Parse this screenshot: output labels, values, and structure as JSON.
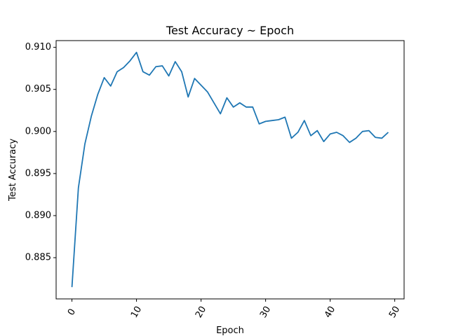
{
  "chart_data": {
    "type": "line",
    "title": "Test Accuracy ~ Epoch",
    "xlabel": "Epoch",
    "ylabel": "Test Accuracy",
    "xlim": [
      -2.45,
      51.45
    ],
    "ylim": [
      0.8801,
      0.9108
    ],
    "x_ticks": [
      "0",
      "10",
      "20",
      "30",
      "40",
      "50"
    ],
    "y_ticks": [
      "0.885",
      "0.890",
      "0.895",
      "0.900",
      "0.905",
      "0.910"
    ],
    "x_tick_rotation": -60,
    "grid": false,
    "series": [
      {
        "color": "#1f77b4",
        "x": [
          0,
          1,
          2,
          3,
          4,
          5,
          6,
          7,
          8,
          9,
          10,
          11,
          12,
          13,
          14,
          15,
          16,
          17,
          18,
          19,
          20,
          21,
          22,
          23,
          24,
          25,
          26,
          27,
          28,
          29,
          30,
          31,
          32,
          33,
          34,
          35,
          36,
          37,
          38,
          39,
          40,
          41,
          42,
          43,
          44,
          45,
          46,
          47,
          48,
          49
        ],
        "values": [
          0.8815,
          0.8933,
          0.8985,
          0.9018,
          0.9044,
          0.9064,
          0.9054,
          0.9071,
          0.9076,
          0.9084,
          0.9094,
          0.9071,
          0.9067,
          0.9077,
          0.9078,
          0.9066,
          0.9083,
          0.9071,
          0.9041,
          0.9063,
          0.9055,
          0.9047,
          0.9034,
          0.9021,
          0.904,
          0.9029,
          0.9034,
          0.9029,
          0.9029,
          0.9009,
          0.9012,
          0.9013,
          0.9014,
          0.9017,
          0.8992,
          0.8999,
          0.9013,
          0.8995,
          0.9001,
          0.8988,
          0.8997,
          0.8999,
          0.8995,
          0.8987,
          0.8992,
          0.9,
          0.9001,
          0.8993,
          0.8992,
          0.8999
        ]
      }
    ]
  }
}
